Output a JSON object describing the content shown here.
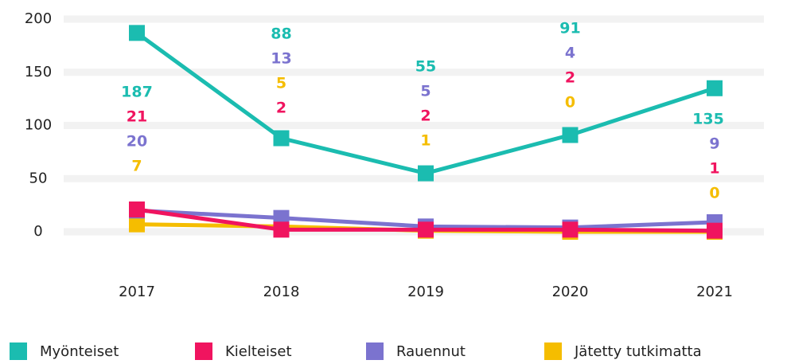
{
  "chart_data": {
    "type": "line",
    "categories": [
      "2017",
      "2018",
      "2019",
      "2020",
      "2021"
    ],
    "series": [
      {
        "name": "Myönteiset",
        "color": "#1bbcb0",
        "values": [
          187,
          88,
          55,
          91,
          135
        ]
      },
      {
        "name": "Kielteiset",
        "color": "#f0145f",
        "values": [
          21,
          2,
          2,
          2,
          1
        ]
      },
      {
        "name": "Rauennut",
        "color": "#7b73cf",
        "values": [
          20,
          13,
          5,
          4,
          9
        ]
      },
      {
        "name": "Jätetty tutkimatta",
        "color": "#f5bd00",
        "values": [
          7,
          5,
          1,
          0,
          0
        ]
      }
    ],
    "ylim": [
      0,
      200
    ],
    "yticks": [
      0,
      50,
      100,
      150,
      200
    ],
    "grid": true,
    "legend": "bottom"
  }
}
